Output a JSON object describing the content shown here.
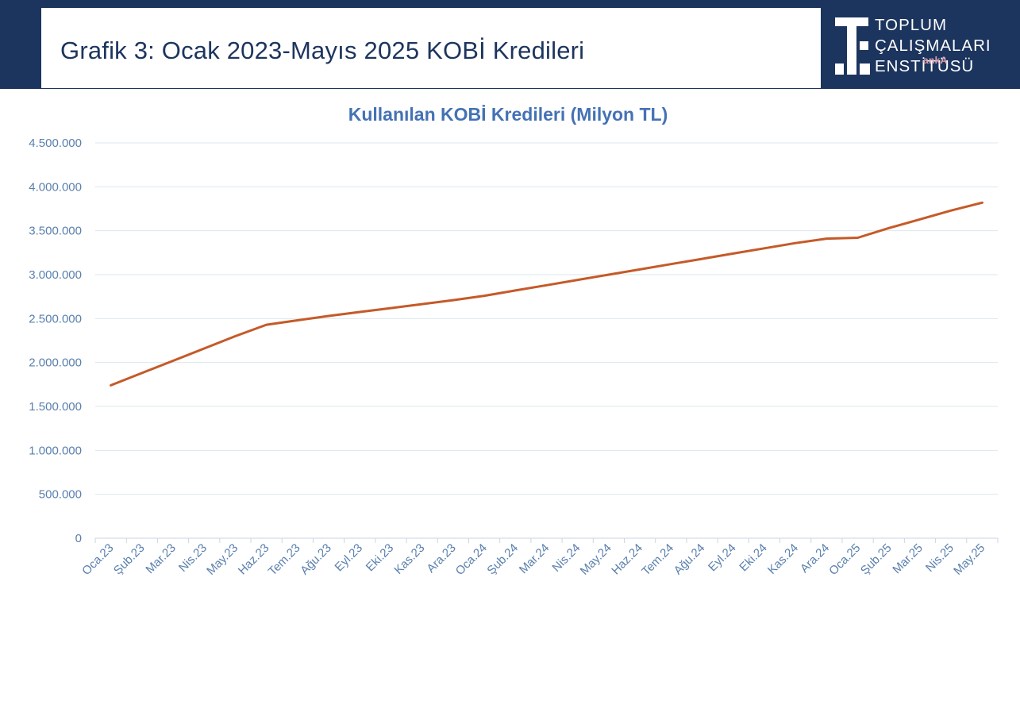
{
  "header": {
    "title": "Grafik 3: Ocak 2023-Mayıs 2025 KOBİ Kredileri",
    "logo_lines": [
      "TOPLUM",
      "ÇALIŞMALARI",
      "ENSTİTÜSÜ"
    ],
    "watermark": "ankA"
  },
  "colors": {
    "header_bg": "#1c355e",
    "line": "#c55a28",
    "title": "#4472b4",
    "tick": "#5a80ad"
  },
  "chart_data": {
    "type": "line",
    "title": "Kullanılan KOBİ Kredileri (Milyon TL)",
    "xlabel": "",
    "ylabel": "",
    "ylim": [
      0,
      4500000
    ],
    "y_ticks": [
      0,
      500000,
      1000000,
      1500000,
      2000000,
      2500000,
      3000000,
      3500000,
      4000000,
      4500000
    ],
    "y_tick_labels": [
      "0",
      "500.000",
      "1.000.000",
      "1.500.000",
      "2.000.000",
      "2.500.000",
      "3.000.000",
      "3.500.000",
      "4.000.000",
      "4.500.000"
    ],
    "grid": true,
    "legend": "none",
    "categories": [
      "Oca.23",
      "Şub.23",
      "Mar.23",
      "Nis.23",
      "May.23",
      "Haz.23",
      "Tem.23",
      "Ağu.23",
      "Eyl.23",
      "Eki.23",
      "Kas.23",
      "Ara.23",
      "Oca.24",
      "Şub.24",
      "Mar.24",
      "Nis.24",
      "May.24",
      "Haz.24",
      "Tem.24",
      "Ağu.24",
      "Eyl.24",
      "Eki.24",
      "Kas.24",
      "Ara.24",
      "Oca.25",
      "Şub.25",
      "Mar.25",
      "Nis.25",
      "May.25"
    ],
    "series": [
      {
        "name": "Kullanılan KOBİ Kredileri",
        "values": [
          1740000,
          1880000,
          2020000,
          2160000,
          2300000,
          2430000,
          2480000,
          2530000,
          2575000,
          2620000,
          2665000,
          2710000,
          2760000,
          2820000,
          2880000,
          2940000,
          3000000,
          3060000,
          3120000,
          3180000,
          3240000,
          3300000,
          3360000,
          3410000,
          3420000,
          3530000,
          3630000,
          3730000,
          3820000
        ]
      }
    ]
  }
}
